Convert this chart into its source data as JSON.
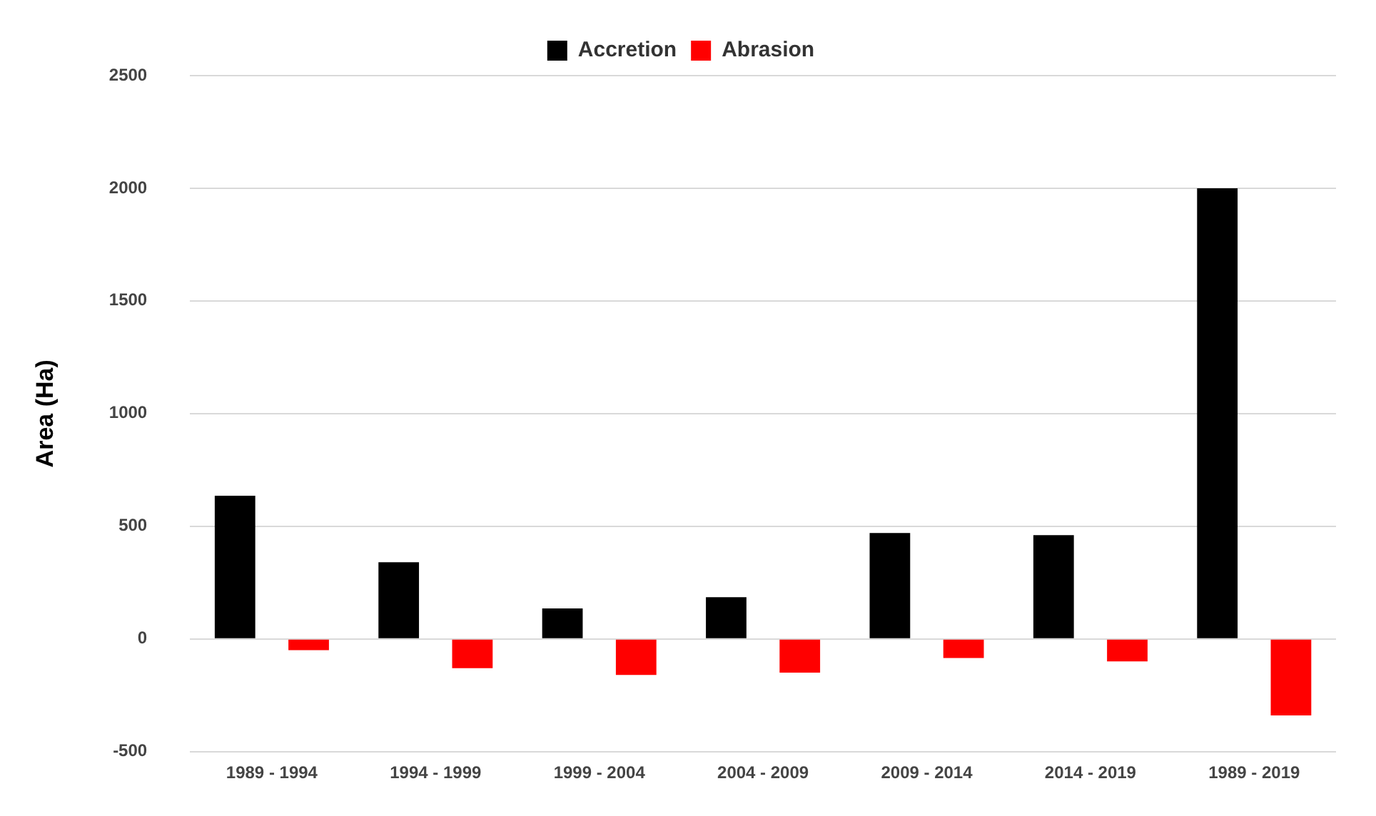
{
  "chart_data": {
    "type": "bar",
    "ylabel": "Area (Ha)",
    "categories": [
      "1989 - 1994",
      "1994 - 1999",
      "1999 - 2004",
      "2004 - 2009",
      "2009 - 2014",
      "2014 - 2019",
      "1989 - 2019"
    ],
    "series": [
      {
        "name": "Accretion",
        "color": "#000000",
        "values": [
          635,
          340,
          135,
          185,
          470,
          460,
          2000
        ]
      },
      {
        "name": "Abrasion",
        "color": "#ff0000",
        "values": [
          -50,
          -130,
          -160,
          -150,
          -85,
          -100,
          -340
        ]
      }
    ],
    "ylim": [
      -500,
      2500
    ],
    "yticks": [
      -500,
      0,
      500,
      1000,
      1500,
      2000,
      2500
    ],
    "grid": "y",
    "legend": "top"
  }
}
